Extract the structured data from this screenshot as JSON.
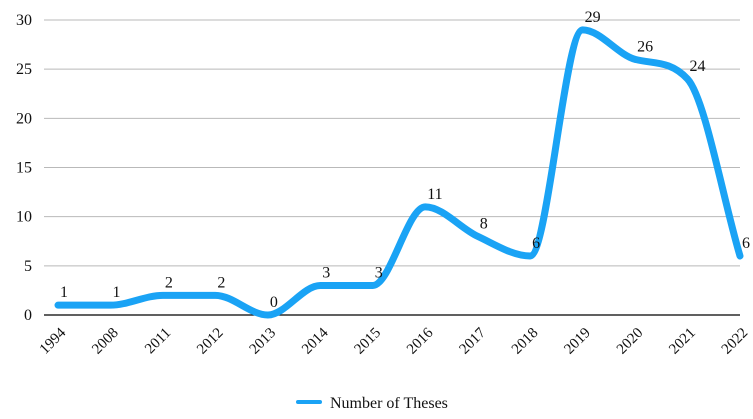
{
  "chart_data": {
    "type": "line",
    "smooth": true,
    "categories": [
      "1994",
      "2008",
      "2011",
      "2012",
      "2013",
      "2014",
      "2015",
      "2016",
      "2017",
      "2018",
      "2019",
      "2020",
      "2021",
      "2022"
    ],
    "series": [
      {
        "name": "Number of Theses",
        "values": [
          1,
          1,
          2,
          2,
          0,
          3,
          3,
          11,
          8,
          6,
          29,
          26,
          24,
          6
        ],
        "color": "#1aa3f5"
      }
    ],
    "data_labels": [
      "1",
      "1",
      "2",
      "2",
      "0",
      "3",
      "3",
      "11",
      "8",
      "6",
      "29",
      "26",
      "24",
      "6"
    ],
    "ylim": [
      0,
      30
    ],
    "yticks": [
      0,
      5,
      10,
      15,
      20,
      25,
      30
    ],
    "ytick_labels": [
      "0",
      "5",
      "10",
      "15",
      "20",
      "25",
      "30"
    ],
    "grid": true,
    "legend_position": "bottom-center",
    "title": "",
    "xlabel": "",
    "ylabel": ""
  }
}
